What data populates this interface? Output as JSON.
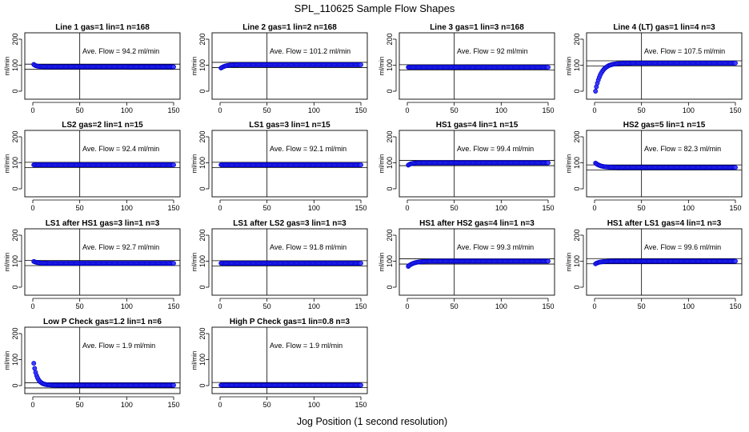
{
  "figure": {
    "title": "SPL_110625  Sample Flow Shapes",
    "xlabel": "Jog Position (1 second resolution)"
  },
  "chart_data": [
    {
      "type": "scatter",
      "title": "Line 1 gas=1 lin=1 n=168",
      "ylabel": "ml/min",
      "xlim": [
        0,
        150
      ],
      "ylim": [
        -20,
        220
      ],
      "xticks": [
        0,
        50,
        100,
        150
      ],
      "yticks": [
        0,
        100,
        200
      ],
      "vline": 50,
      "hlines": [
        84,
        104
      ],
      "annotation": "Ave. Flow = 94.2  ml/min",
      "shape": {
        "start": 103,
        "end": 94,
        "k": 0.35
      },
      "x_range": [
        1,
        150
      ]
    },
    {
      "type": "scatter",
      "title": "Line 2 gas=1 lin=2 n=168",
      "ylabel": "ml/min",
      "xlim": [
        0,
        150
      ],
      "ylim": [
        -20,
        220
      ],
      "xticks": [
        0,
        50,
        100,
        150
      ],
      "yticks": [
        0,
        100,
        200
      ],
      "vline": 50,
      "hlines": [
        91,
        111
      ],
      "annotation": "Ave. Flow = 101.2  ml/min",
      "shape": {
        "start": 89,
        "end": 102,
        "k": 0.2
      },
      "x_range": [
        1,
        150
      ]
    },
    {
      "type": "scatter",
      "title": "Line 3 gas=1 lin=3 n=168",
      "ylabel": "ml/min",
      "xlim": [
        0,
        150
      ],
      "ylim": [
        -20,
        220
      ],
      "xticks": [
        0,
        50,
        100,
        150
      ],
      "yticks": [
        0,
        100,
        200
      ],
      "vline": 50,
      "hlines": [
        82,
        102
      ],
      "annotation": "Ave. Flow = 92  ml/min",
      "shape": {
        "start": 92,
        "end": 92,
        "k": 0.3
      },
      "x_range": [
        1,
        150
      ]
    },
    {
      "type": "scatter",
      "title": "Line 4 (LT) gas=1 lin=4 n=3",
      "ylabel": "ml/min",
      "xlim": [
        0,
        150
      ],
      "ylim": [
        -20,
        220
      ],
      "xticks": [
        0,
        50,
        100,
        150
      ],
      "yticks": [
        0,
        100,
        200
      ],
      "vline": 50,
      "hlines": [
        97,
        117
      ],
      "annotation": "Ave. Flow = 107.5  ml/min",
      "shape": {
        "start": 0,
        "end": 108,
        "k": 0.17
      },
      "x_range": [
        1,
        150
      ]
    },
    {
      "type": "scatter",
      "title": "LS2 gas=2 lin=1 n=15",
      "ylabel": "ml/min",
      "xlim": [
        0,
        150
      ],
      "ylim": [
        -20,
        220
      ],
      "xticks": [
        0,
        50,
        100,
        150
      ],
      "yticks": [
        0,
        100,
        200
      ],
      "vline": 50,
      "hlines": [
        82,
        102
      ],
      "annotation": "Ave. Flow = 92.4  ml/min",
      "shape": {
        "start": 92,
        "end": 92,
        "k": 0.3
      },
      "x_range": [
        1,
        150
      ]
    },
    {
      "type": "scatter",
      "title": "LS1 gas=3 lin=1 n=15",
      "ylabel": "ml/min",
      "xlim": [
        0,
        150
      ],
      "ylim": [
        -20,
        220
      ],
      "xticks": [
        0,
        50,
        100,
        150
      ],
      "yticks": [
        0,
        100,
        200
      ],
      "vline": 50,
      "hlines": [
        82,
        102
      ],
      "annotation": "Ave. Flow = 92.1  ml/min",
      "shape": {
        "start": 92,
        "end": 92,
        "k": 0.3
      },
      "x_range": [
        1,
        150
      ]
    },
    {
      "type": "scatter",
      "title": "HS1 gas=4 lin=1 n=15",
      "ylabel": "ml/min",
      "xlim": [
        0,
        150
      ],
      "ylim": [
        -20,
        220
      ],
      "xticks": [
        0,
        50,
        100,
        150
      ],
      "yticks": [
        0,
        100,
        200
      ],
      "vline": 50,
      "hlines": [
        89,
        109
      ],
      "annotation": "Ave. Flow = 99.4  ml/min",
      "shape": {
        "start": 91,
        "end": 100,
        "k": 0.3
      },
      "x_range": [
        1,
        150
      ]
    },
    {
      "type": "scatter",
      "title": "HS2 gas=5 lin=1 n=15",
      "ylabel": "ml/min",
      "xlim": [
        0,
        150
      ],
      "ylim": [
        -20,
        220
      ],
      "xticks": [
        0,
        50,
        100,
        150
      ],
      "yticks": [
        0,
        100,
        200
      ],
      "vline": 50,
      "hlines": [
        72,
        92
      ],
      "annotation": "Ave. Flow = 82.3  ml/min",
      "shape": {
        "start": 99,
        "end": 82,
        "k": 0.18
      },
      "x_range": [
        1,
        150
      ]
    },
    {
      "type": "scatter",
      "title": "LS1 after HS1 gas=3 lin=1 n=3",
      "ylabel": "ml/min",
      "xlim": [
        0,
        150
      ],
      "ylim": [
        -20,
        220
      ],
      "xticks": [
        0,
        50,
        100,
        150
      ],
      "yticks": [
        0,
        100,
        200
      ],
      "vline": 50,
      "hlines": [
        83,
        103
      ],
      "annotation": "Ave. Flow = 92.7  ml/min",
      "shape": {
        "start": 99,
        "end": 92,
        "k": 0.25
      },
      "x_range": [
        1,
        150
      ]
    },
    {
      "type": "scatter",
      "title": "LS1 after LS2 gas=3 lin=1 n=3",
      "ylabel": "ml/min",
      "xlim": [
        0,
        150
      ],
      "ylim": [
        -20,
        220
      ],
      "xticks": [
        0,
        50,
        100,
        150
      ],
      "yticks": [
        0,
        100,
        200
      ],
      "vline": 50,
      "hlines": [
        82,
        102
      ],
      "annotation": "Ave. Flow = 91.8  ml/min",
      "shape": {
        "start": 92,
        "end": 92,
        "k": 0.3
      },
      "x_range": [
        1,
        150
      ]
    },
    {
      "type": "scatter",
      "title": "HS1 after HS2 gas=4 lin=1 n=3",
      "ylabel": "ml/min",
      "xlim": [
        0,
        150
      ],
      "ylim": [
        -20,
        220
      ],
      "xticks": [
        0,
        50,
        100,
        150
      ],
      "yticks": [
        0,
        100,
        200
      ],
      "vline": 50,
      "hlines": [
        89,
        109
      ],
      "annotation": "Ave. Flow = 99.3  ml/min",
      "shape": {
        "start": 80,
        "end": 100,
        "k": 0.17
      },
      "x_range": [
        1,
        150
      ]
    },
    {
      "type": "scatter",
      "title": "HS1 after LS1 gas=4 lin=1 n=3",
      "ylabel": "ml/min",
      "xlim": [
        0,
        150
      ],
      "ylim": [
        -20,
        220
      ],
      "xticks": [
        0,
        50,
        100,
        150
      ],
      "yticks": [
        0,
        100,
        200
      ],
      "vline": 50,
      "hlines": [
        90,
        110
      ],
      "annotation": "Ave. Flow = 99.6  ml/min",
      "shape": {
        "start": 90,
        "end": 100,
        "k": 0.22
      },
      "x_range": [
        1,
        150
      ]
    },
    {
      "type": "scatter",
      "title": "Low P Check gas=1.2 lin=1 n=6",
      "ylabel": "ml/min",
      "xlim": [
        0,
        150
      ],
      "ylim": [
        -20,
        220
      ],
      "xticks": [
        0,
        50,
        100,
        150
      ],
      "yticks": [
        0,
        100,
        200
      ],
      "vline": 50,
      "hlines": [
        -9,
        11
      ],
      "annotation": "Ave. Flow = 1.9  ml/min",
      "shape": {
        "start": 86,
        "end": 1.5,
        "k": 0.27
      },
      "x_range": [
        1,
        150
      ]
    },
    {
      "type": "scatter",
      "title": "High P Check gas=1 lin=0.8 n=3",
      "ylabel": "ml/min",
      "xlim": [
        0,
        150
      ],
      "ylim": [
        -20,
        220
      ],
      "xticks": [
        0,
        50,
        100,
        150
      ],
      "yticks": [
        0,
        100,
        200
      ],
      "vline": 50,
      "hlines": [
        -8,
        12
      ],
      "annotation": "Ave. Flow = 1.9  ml/min",
      "shape": {
        "start": 2,
        "end": 2,
        "k": 0.3
      },
      "x_range": [
        1,
        150
      ]
    }
  ]
}
